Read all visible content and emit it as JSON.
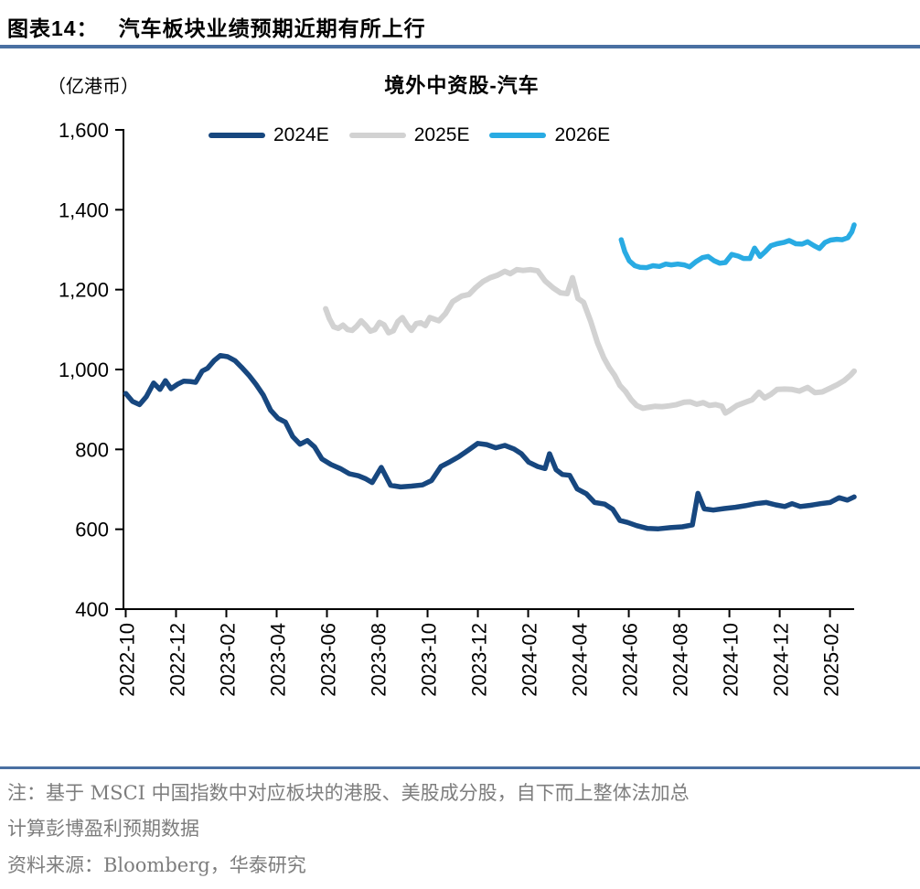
{
  "header": {
    "figure_label": "图表14：",
    "figure_title": "汽车板块业绩预期近期有所上行"
  },
  "chart": {
    "unit_label": "（亿港币）",
    "title": "境外中资股-汽车",
    "legend": [
      {
        "label": "2024E",
        "color": "#17477f"
      },
      {
        "label": "2025E",
        "color": "#d2d2d2"
      },
      {
        "label": "2026E",
        "color": "#29abe3"
      }
    ]
  },
  "chart_data": {
    "type": "line",
    "title": "境外中资股-汽车",
    "ylabel": "（亿港币）",
    "x_unit": "months since 2022-10",
    "xlim": [
      -0.09,
      28.96
    ],
    "ylim": [
      400,
      1600
    ],
    "grid": false,
    "legend_position": "top-center",
    "y_ticks": [
      1600,
      1400,
      1200,
      1000,
      800,
      600,
      400
    ],
    "x_ticks": [
      {
        "m": 0,
        "label": "2022-10"
      },
      {
        "m": 2,
        "label": "2022-12"
      },
      {
        "m": 4,
        "label": "2023-02"
      },
      {
        "m": 6,
        "label": "2023-04"
      },
      {
        "m": 8,
        "label": "2023-06"
      },
      {
        "m": 10,
        "label": "2023-08"
      },
      {
        "m": 12,
        "label": "2023-10"
      },
      {
        "m": 14,
        "label": "2023-12"
      },
      {
        "m": 16,
        "label": "2024-02"
      },
      {
        "m": 18,
        "label": "2024-04"
      },
      {
        "m": 20,
        "label": "2024-06"
      },
      {
        "m": 22,
        "label": "2024-08"
      },
      {
        "m": 24,
        "label": "2024-10"
      },
      {
        "m": 26,
        "label": "2024-12"
      },
      {
        "m": 28,
        "label": "2025-02"
      }
    ],
    "series": [
      {
        "name": "2024E",
        "color": "#17477f",
        "stroke_width": 5.5,
        "points": [
          [
            0,
            940
          ],
          [
            0.27,
            920
          ],
          [
            0.55,
            912
          ],
          [
            0.82,
            932
          ],
          [
            1.11,
            966
          ],
          [
            1.36,
            950
          ],
          [
            1.58,
            972
          ],
          [
            1.8,
            952
          ],
          [
            2.05,
            963
          ],
          [
            2.31,
            971
          ],
          [
            2.56,
            970
          ],
          [
            2.78,
            968
          ],
          [
            3.04,
            996
          ],
          [
            3.25,
            1003
          ],
          [
            3.51,
            1022
          ],
          [
            3.76,
            1035
          ],
          [
            4.05,
            1032
          ],
          [
            4.35,
            1022
          ],
          [
            4.6,
            1006
          ],
          [
            4.89,
            986
          ],
          [
            5.18,
            963
          ],
          [
            5.47,
            936
          ],
          [
            5.76,
            898
          ],
          [
            6.05,
            878
          ],
          [
            6.35,
            868
          ],
          [
            6.64,
            832
          ],
          [
            6.93,
            813
          ],
          [
            7.22,
            822
          ],
          [
            7.51,
            806
          ],
          [
            7.8,
            776
          ],
          [
            8.16,
            762
          ],
          [
            8.53,
            752
          ],
          [
            8.89,
            739
          ],
          [
            9.25,
            734
          ],
          [
            9.55,
            726
          ],
          [
            9.8,
            717
          ],
          [
            10.16,
            755
          ],
          [
            10.53,
            710
          ],
          [
            10.93,
            706
          ],
          [
            11.36,
            708
          ],
          [
            11.8,
            711
          ],
          [
            12.16,
            722
          ],
          [
            12.53,
            757
          ],
          [
            12.89,
            769
          ],
          [
            13.25,
            782
          ],
          [
            13.62,
            798
          ],
          [
            14,
            815
          ],
          [
            14.35,
            812
          ],
          [
            14.71,
            804
          ],
          [
            15.07,
            810
          ],
          [
            15.44,
            801
          ],
          [
            15.73,
            789
          ],
          [
            16.02,
            768
          ],
          [
            16.38,
            757
          ],
          [
            16.67,
            752
          ],
          [
            16.85,
            789
          ],
          [
            17.11,
            749
          ],
          [
            17.36,
            737
          ],
          [
            17.65,
            735
          ],
          [
            17.95,
            701
          ],
          [
            18.31,
            689
          ],
          [
            18.64,
            667
          ],
          [
            19.04,
            663
          ],
          [
            19.36,
            650
          ],
          [
            19.65,
            622
          ],
          [
            19.95,
            617
          ],
          [
            20.31,
            609
          ],
          [
            20.75,
            602
          ],
          [
            21.18,
            601
          ],
          [
            21.65,
            604
          ],
          [
            22.13,
            606
          ],
          [
            22.53,
            611
          ],
          [
            22.75,
            690
          ],
          [
            23,
            651
          ],
          [
            23.36,
            648
          ],
          [
            23.8,
            652
          ],
          [
            24.24,
            655
          ],
          [
            24.64,
            659
          ],
          [
            25.04,
            664
          ],
          [
            25.47,
            667
          ],
          [
            25.84,
            661
          ],
          [
            26.2,
            657
          ],
          [
            26.49,
            664
          ],
          [
            26.82,
            657
          ],
          [
            27.22,
            660
          ],
          [
            27.62,
            664
          ],
          [
            28,
            667
          ],
          [
            28.36,
            679
          ],
          [
            28.69,
            673
          ],
          [
            28.96,
            681
          ]
        ]
      },
      {
        "name": "2025E",
        "color": "#d2d2d2",
        "stroke_width": 6,
        "points": [
          [
            7.95,
            1152
          ],
          [
            8.09,
            1128
          ],
          [
            8.27,
            1107
          ],
          [
            8.45,
            1103
          ],
          [
            8.64,
            1111
          ],
          [
            8.82,
            1100
          ],
          [
            9,
            1098
          ],
          [
            9.18,
            1108
          ],
          [
            9.36,
            1122
          ],
          [
            9.55,
            1110
          ],
          [
            9.73,
            1096
          ],
          [
            9.91,
            1100
          ],
          [
            10.09,
            1118
          ],
          [
            10.27,
            1112
          ],
          [
            10.45,
            1092
          ],
          [
            10.64,
            1097
          ],
          [
            10.82,
            1120
          ],
          [
            11,
            1130
          ],
          [
            11.18,
            1112
          ],
          [
            11.36,
            1098
          ],
          [
            11.55,
            1115
          ],
          [
            11.73,
            1117
          ],
          [
            11.91,
            1110
          ],
          [
            12.09,
            1130
          ],
          [
            12.27,
            1126
          ],
          [
            12.45,
            1122
          ],
          [
            12.71,
            1140
          ],
          [
            13,
            1170
          ],
          [
            13.36,
            1184
          ],
          [
            13.65,
            1188
          ],
          [
            13.91,
            1205
          ],
          [
            14.2,
            1220
          ],
          [
            14.49,
            1230
          ],
          [
            14.78,
            1236
          ],
          [
            15.07,
            1246
          ],
          [
            15.29,
            1240
          ],
          [
            15.55,
            1250
          ],
          [
            15.8,
            1248
          ],
          [
            16.09,
            1250
          ],
          [
            16.38,
            1247
          ],
          [
            16.67,
            1222
          ],
          [
            17,
            1204
          ],
          [
            17.29,
            1192
          ],
          [
            17.55,
            1190
          ],
          [
            17.76,
            1230
          ],
          [
            17.98,
            1178
          ],
          [
            18.2,
            1168
          ],
          [
            18.49,
            1120
          ],
          [
            18.75,
            1068
          ],
          [
            19,
            1030
          ],
          [
            19.22,
            1005
          ],
          [
            19.44,
            985
          ],
          [
            19.65,
            960
          ],
          [
            19.87,
            945
          ],
          [
            20.09,
            925
          ],
          [
            20.31,
            910
          ],
          [
            20.56,
            903
          ],
          [
            20.75,
            905
          ],
          [
            21.05,
            908
          ],
          [
            21.33,
            907
          ],
          [
            21.62,
            909
          ],
          [
            21.9,
            912
          ],
          [
            22.2,
            918
          ],
          [
            22.45,
            919
          ],
          [
            22.7,
            913
          ],
          [
            22.96,
            917
          ],
          [
            23.2,
            910
          ],
          [
            23.45,
            912
          ],
          [
            23.7,
            908
          ],
          [
            23.84,
            891
          ],
          [
            24,
            897
          ],
          [
            24.3,
            910
          ],
          [
            24.6,
            917
          ],
          [
            24.9,
            924
          ],
          [
            25.18,
            943
          ],
          [
            25.4,
            929
          ],
          [
            25.65,
            938
          ],
          [
            25.9,
            950
          ],
          [
            26.2,
            951
          ],
          [
            26.49,
            950
          ],
          [
            26.78,
            946
          ],
          [
            27.11,
            955
          ],
          [
            27.4,
            942
          ],
          [
            27.69,
            944
          ],
          [
            28,
            953
          ],
          [
            28.29,
            962
          ],
          [
            28.56,
            972
          ],
          [
            28.82,
            986
          ],
          [
            28.96,
            996
          ]
        ]
      },
      {
        "name": "2026E",
        "color": "#29abe3",
        "stroke_width": 5.5,
        "points": [
          [
            19.7,
            1325
          ],
          [
            19.84,
            1295
          ],
          [
            20.02,
            1272
          ],
          [
            20.24,
            1260
          ],
          [
            20.45,
            1256
          ],
          [
            20.71,
            1255
          ],
          [
            20.96,
            1260
          ],
          [
            21.22,
            1258
          ],
          [
            21.47,
            1264
          ],
          [
            21.69,
            1262
          ],
          [
            21.95,
            1264
          ],
          [
            22.2,
            1262
          ],
          [
            22.42,
            1257
          ],
          [
            22.67,
            1270
          ],
          [
            22.93,
            1280
          ],
          [
            23.15,
            1283
          ],
          [
            23.4,
            1272
          ],
          [
            23.62,
            1266
          ],
          [
            23.84,
            1268
          ],
          [
            24.09,
            1288
          ],
          [
            24.35,
            1284
          ],
          [
            24.56,
            1278
          ],
          [
            24.82,
            1278
          ],
          [
            25,
            1304
          ],
          [
            25.22,
            1283
          ],
          [
            25.44,
            1296
          ],
          [
            25.65,
            1310
          ],
          [
            25.9,
            1315
          ],
          [
            26.16,
            1318
          ],
          [
            26.38,
            1323
          ],
          [
            26.64,
            1315
          ],
          [
            26.89,
            1314
          ],
          [
            27.11,
            1320
          ],
          [
            27.36,
            1310
          ],
          [
            27.58,
            1303
          ],
          [
            27.8,
            1318
          ],
          [
            28.02,
            1324
          ],
          [
            28.27,
            1326
          ],
          [
            28.49,
            1325
          ],
          [
            28.71,
            1330
          ],
          [
            28.87,
            1345
          ],
          [
            28.96,
            1362
          ]
        ]
      }
    ]
  },
  "footer": {
    "note_line1": "注：基于 MSCI 中国指数中对应板块的港股、美股成分股，自下而上整体法加总",
    "note_line2": "计算彭博盈利预期数据",
    "source": "资料来源：Bloomberg，华泰研究"
  }
}
